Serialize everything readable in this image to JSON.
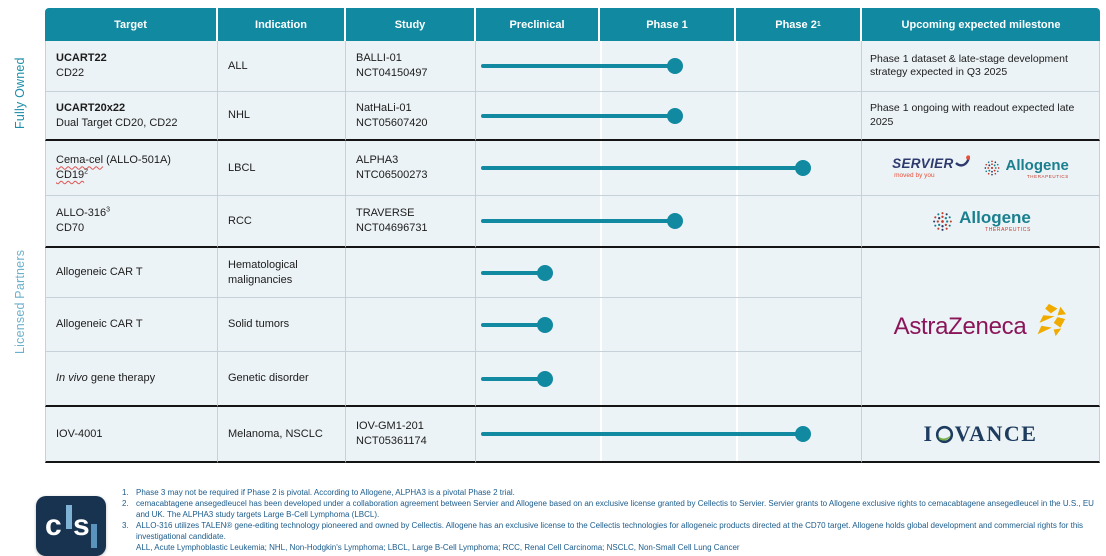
{
  "sections": {
    "fully_owned": "Fully Owned",
    "licensed": "Licensed Partners"
  },
  "header": {
    "columns": [
      "Target",
      "Indication",
      "Study",
      "Preclinical",
      "Phase 1",
      "Phase 2",
      "Upcoming expected milestone"
    ],
    "phase2_sup": "1"
  },
  "rows": [
    {
      "target_line1": "UCART22",
      "target_line2": "CD22",
      "indication": "ALL",
      "study_line1": "BALLI-01",
      "study_line2": "NCT04150497",
      "stage": "Phase 1",
      "milestone": "Phase 1 dataset & late-stage development strategy expected in Q3 2025"
    },
    {
      "target_line1": "UCART20x22",
      "target_line2": "Dual Target CD20, CD22",
      "indication": "NHL",
      "study_line1": "NatHaLi-01",
      "study_line2": "NCT05607420",
      "stage": "Phase 1",
      "milestone": "Phase 1 ongoing with readout expected late 2025"
    },
    {
      "target_name": "Cema-cel",
      "target_paren": "(ALLO-501A)",
      "target_line2": "CD19",
      "target_line2_sup": "2",
      "indication": "LBCL",
      "study_line1": "ALPHA3",
      "study_line2": "NTC06500273",
      "stage": "Phase 2",
      "milestone_partners": "Servier, Allogene"
    },
    {
      "target_line1": "ALLO-316",
      "target_line1_sup": "3",
      "target_line2": "CD70",
      "indication": "RCC",
      "study_line1": "TRAVERSE",
      "study_line2": "NCT04696731",
      "stage": "Phase 1",
      "milestone_partners": "Allogene"
    },
    {
      "target_line1": "Allogeneic CAR T",
      "indication": "Hematological malignancies",
      "stage": "Preclinical",
      "milestone_partners": "AstraZeneca"
    },
    {
      "target_line1": "Allogeneic CAR T",
      "indication": "Solid tumors",
      "stage": "Preclinical",
      "milestone_partners": "AstraZeneca"
    },
    {
      "target_italic": "In vivo",
      "target_rest": "gene therapy",
      "indication": "Genetic disorder",
      "stage": "Preclinical",
      "milestone_partners": "AstraZeneca"
    },
    {
      "target_line1": "IOV-4001",
      "indication": "Melanoma, NSCLC",
      "study_line1": "IOV-GM1-201",
      "study_line2": "NCT05361174",
      "stage": "Phase 2",
      "milestone_partners": "Iovance"
    }
  ],
  "logos": {
    "servier": {
      "name": "SERVIER",
      "tagline": "moved by you"
    },
    "allogene": {
      "name": "Allogene",
      "sub": "THERAPEUTICS"
    },
    "astrazeneca": {
      "name": "AstraZeneca"
    },
    "iovance": {
      "prefix": "I",
      "suffix": "VANCE"
    },
    "cellectis": {
      "c": "c",
      "s": "s"
    }
  },
  "footnotes": [
    {
      "num": "1.",
      "text": "Phase 3 may not be required if Phase 2 is pivotal. According to Allogene, ALPHA3 is a pivotal Phase 2 trial."
    },
    {
      "num": "2.",
      "text": "cemacabtagene ansegedleucel has been developed under a collaboration agreement between Servier and Allogene based on an exclusive license granted by Cellectis to Servier. Servier grants to Allogene exclusive rights to cemacabtagene ansegedleucel in the U.S., EU and UK. The ALPHA3 study targets Large B-Cell Lymphoma (LBCL)."
    },
    {
      "num": "3.",
      "text": "ALLO-316 utilizes TALEN® gene-editing technology pioneered and owned by Cellectis. Allogene has an exclusive license to the Cellectis technologies for allogeneic products directed at the CD70 target. Allogene holds global development and commercial rights for this investigational candidate."
    }
  ],
  "abbreviations": "ALL, Acute Lymphoblastic Leukemia; NHL, Non-Hodgkin's Lymphoma; LBCL, Large B-Cell Lymphoma; RCC, Renal Cell Carcinoma; NSCLC, Non-Small Cell Lung Cancer",
  "colors": {
    "accent_teal": "#1189a1",
    "row_bg": "#ecf3f6",
    "footnote_blue": "#1b5c8c",
    "fully_owned_label": "#1e8fa8",
    "licensed_label": "#6cb1cb",
    "az_magenta": "#8a1558",
    "az_gold": "#f0ab00",
    "servier_navy": "#2e3a6e",
    "servier_red": "#e8503a",
    "allogene_teal": "#1a7f8e",
    "iovance_navy": "#1d3c5f",
    "iovance_green": "#76b043",
    "cellectis_navy": "#17334f"
  }
}
